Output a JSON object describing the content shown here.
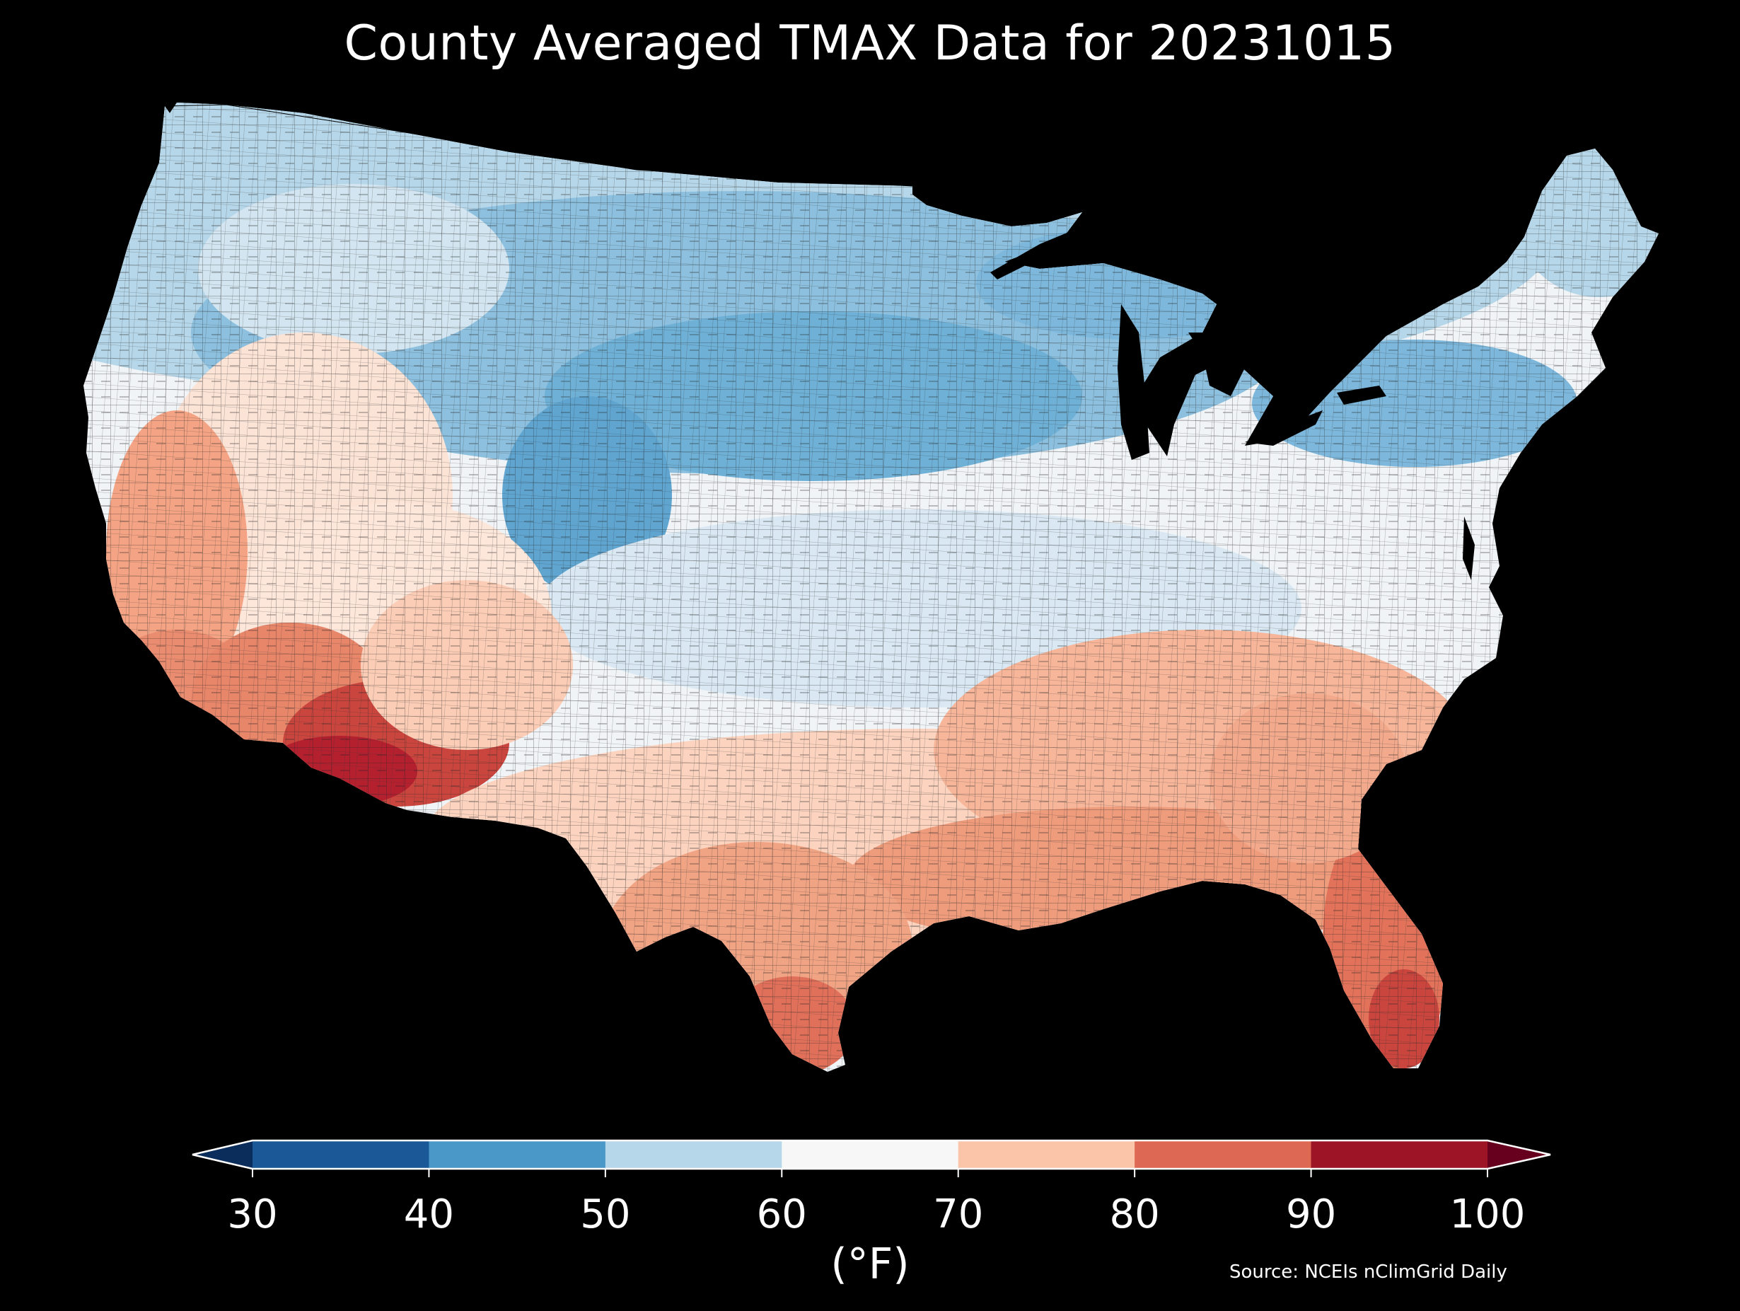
{
  "title": "County Averaged TMAX Data for 20231015",
  "units_label": "(°F)",
  "source": "Source: NCEIs nClimGrid Daily",
  "colorbar": {
    "ticks": [
      "30",
      "40",
      "50",
      "60",
      "70",
      "80",
      "90",
      "100"
    ],
    "colors": [
      "#1b5898",
      "#4a98c8",
      "#b6d7e9",
      "#f7f7f7",
      "#fbc5aa",
      "#dd6853",
      "#9d1426"
    ],
    "under_color": "#0b2d5c",
    "over_color": "#67001f",
    "extend": "both"
  },
  "map": {
    "region": "contiguous-united-states",
    "background": "#000000",
    "county_border_color": "#222222",
    "value_range_degF": [
      30,
      100
    ]
  }
}
